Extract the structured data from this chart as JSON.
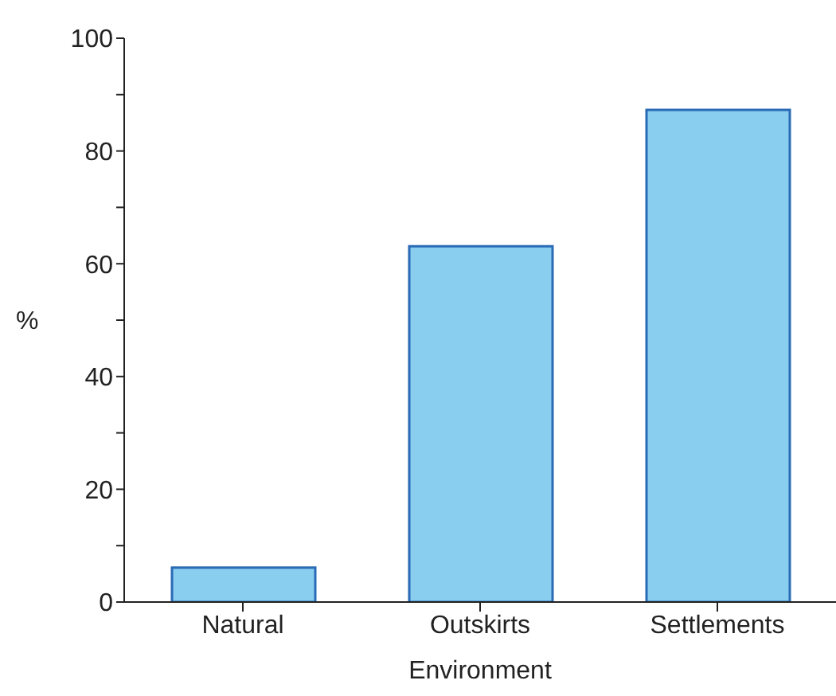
{
  "chart_data": {
    "type": "bar",
    "xlabel": "Environment",
    "ylabel": "%",
    "categories": [
      "Natural",
      "Outskirts",
      "Settlements"
    ],
    "values": [
      6.1,
      63.1,
      87.3
    ],
    "color": "#89cdef",
    "ylim": [
      0,
      100
    ],
    "yticks": [
      0,
      {
        "value": 10,
        "label": null
      },
      20,
      {
        "value": 30,
        "label": null
      },
      40,
      {
        "value": 50,
        "label": null
      },
      60,
      {
        "value": 70,
        "label": null
      },
      80,
      {
        "value": 90,
        "label": null
      },
      100
    ],
    "grid": false,
    "legend": false
  }
}
